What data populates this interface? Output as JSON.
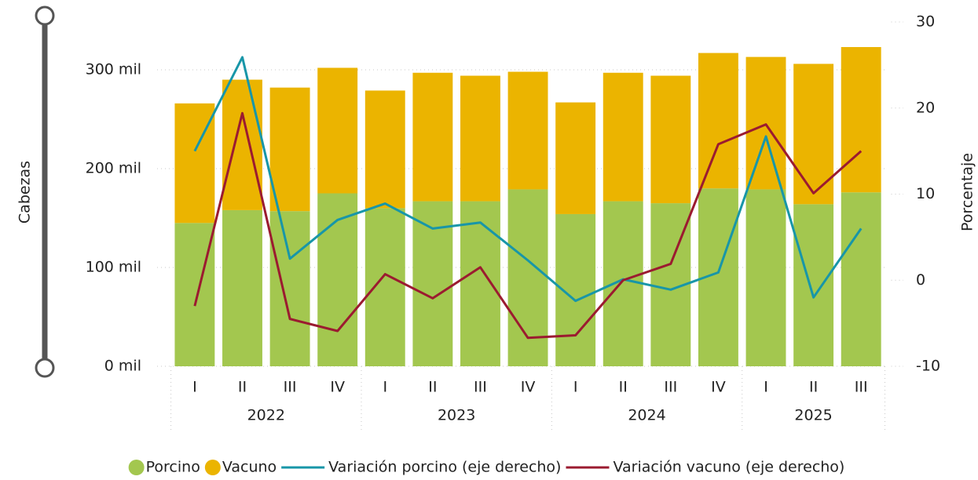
{
  "chart_data": {
    "type": "bar-line",
    "categories": [
      "I",
      "II",
      "III",
      "IV",
      "I",
      "II",
      "III",
      "IV",
      "I",
      "II",
      "III",
      "IV",
      "I",
      "II",
      "III"
    ],
    "category_groups": [
      {
        "label": "2022",
        "size": 4
      },
      {
        "label": "2023",
        "size": 4
      },
      {
        "label": "2024",
        "size": 4
      },
      {
        "label": "2025",
        "size": 3
      }
    ],
    "series": [
      {
        "name": "Porcino",
        "color": "#a3c74f",
        "stacked": true,
        "values": [
          145,
          158,
          157,
          175,
          160,
          167,
          167,
          179,
          154,
          167,
          165,
          180,
          179,
          164,
          176
        ]
      },
      {
        "name": "Vacuno",
        "color": "#ebb400",
        "stacked": true,
        "values": [
          121,
          132,
          125,
          127,
          119,
          130,
          127,
          119,
          113,
          130,
          129,
          137,
          134,
          142,
          147
        ]
      },
      {
        "name": "Variación porcino (eje derecho)",
        "color": "#1896a8",
        "axis": "y2",
        "values": [
          15,
          25.9,
          2.5,
          7,
          8.9,
          6,
          6.7,
          2.3,
          -2.4,
          0.1,
          -1.1,
          0.9,
          16.7,
          -2,
          6
        ]
      },
      {
        "name": "Variación vacuno (eje derecho)",
        "color": "#9b1b30",
        "axis": "y2",
        "values": [
          -3,
          19.4,
          -4.5,
          -5.9,
          0.7,
          -2.1,
          1.5,
          -6.7,
          -6.4,
          0,
          1.9,
          15.8,
          18.1,
          10.1,
          15
        ]
      }
    ],
    "ylabel": "Cabezas",
    "y2label": "Porcentaje",
    "ylim": [
      0,
      348.4
    ],
    "yticks": [
      {
        "value": 0,
        "label": "0 mil"
      },
      {
        "value": 100,
        "label": "100 mil"
      },
      {
        "value": 200,
        "label": "200 mil"
      },
      {
        "value": 300,
        "label": "300 mil"
      }
    ],
    "y2lim": [
      -10,
      30
    ],
    "y2ticks": [
      -10,
      0,
      10,
      20,
      30
    ],
    "grid": true,
    "legend": "bottom"
  }
}
